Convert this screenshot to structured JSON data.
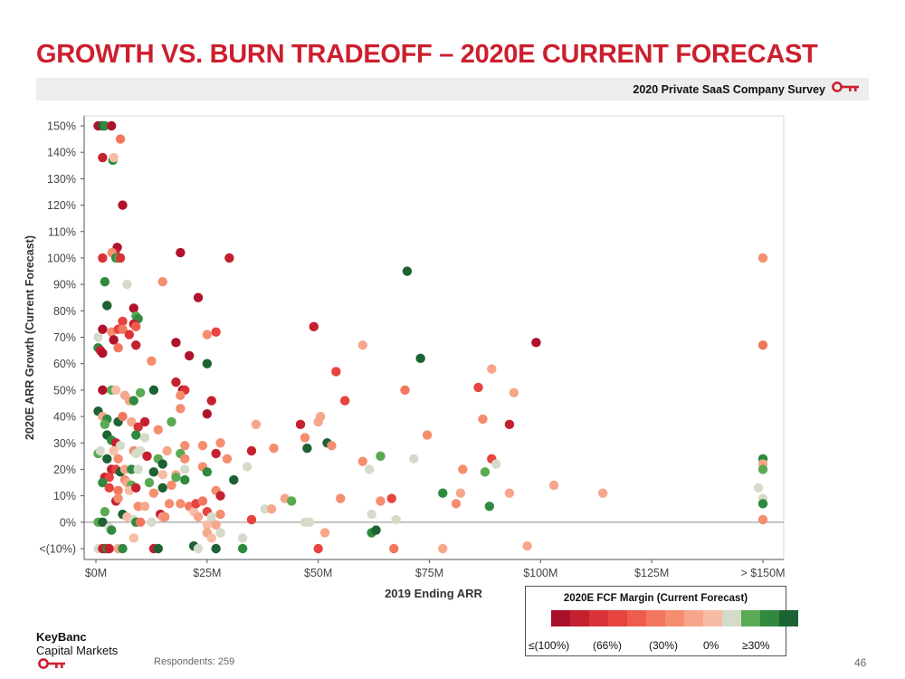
{
  "slide": {
    "title": "GROWTH VS. BURN TRADEOFF – 2020E CURRENT FORECAST",
    "survey_label": "2020 Private SaaS Company Survey",
    "respondents": "Respondents: 259",
    "page_number": "46",
    "logo_line1": "KeyBanc",
    "logo_line2": "Capital Markets",
    "brand_color": "#cc1f2e"
  },
  "legend": {
    "title": "2020E FCF Margin (Current Forecast)",
    "colors": [
      "#a8102c",
      "#c5202f",
      "#da3239",
      "#e7433f",
      "#ee5c4f",
      "#f3765e",
      "#f58d6f",
      "#f6a68a",
      "#f7bca5",
      "#d5dbc9",
      "#5aaa54",
      "#2f8a40",
      "#1c6233"
    ],
    "ticks": [
      "≤(100%)",
      "(66%)",
      "(30%)",
      "0%",
      "≥30%"
    ]
  },
  "chart_data": {
    "type": "scatter",
    "title": "",
    "xlabel": "2019 Ending ARR",
    "ylabel": "2020E ARR Growth (Current Forecast)",
    "xlim": [
      0,
      150
    ],
    "ylim": [
      -10,
      150
    ],
    "x_ticks": [
      0,
      25,
      50,
      75,
      100,
      125,
      150
    ],
    "x_tick_labels": [
      "$0M",
      "$25M",
      "$50M",
      "$75M",
      "$100M",
      "$125M",
      "> $150M"
    ],
    "y_ticks": [
      -10,
      0,
      10,
      20,
      30,
      40,
      50,
      60,
      70,
      80,
      90,
      100,
      110,
      120,
      130,
      140,
      150
    ],
    "y_tick_labels": [
      "<(10%)",
      "0%",
      "10%",
      "20%",
      "30%",
      "40%",
      "50%",
      "60%",
      "70%",
      "80%",
      "90%",
      "100%",
      "110%",
      "120%",
      "130%",
      "140%",
      "150%"
    ],
    "grid": false,
    "color_scale": "2020E FCF Margin (Current Forecast)",
    "points": [
      {
        "x": 0.5,
        "y": 150,
        "c": "#b0132b"
      },
      {
        "x": 1.5,
        "y": 150,
        "c": "#1c6233"
      },
      {
        "x": 2.0,
        "y": 150,
        "c": "#2f8a40"
      },
      {
        "x": 3.5,
        "y": 150,
        "c": "#b0132b"
      },
      {
        "x": 5.5,
        "y": 145,
        "c": "#f3765e"
      },
      {
        "x": 1.5,
        "y": 138,
        "c": "#c5202f"
      },
      {
        "x": 3.8,
        "y": 137,
        "c": "#2f8a40"
      },
      {
        "x": 4.0,
        "y": 138,
        "c": "#f7bca5"
      },
      {
        "x": 6.0,
        "y": 120,
        "c": "#b0132b"
      },
      {
        "x": 4.8,
        "y": 104,
        "c": "#b0132b"
      },
      {
        "x": 4.3,
        "y": 102,
        "c": "#c5202f"
      },
      {
        "x": 3.6,
        "y": 102,
        "c": "#f58d6f"
      },
      {
        "x": 1.5,
        "y": 100,
        "c": "#da3239"
      },
      {
        "x": 4.5,
        "y": 100,
        "c": "#2f8a40"
      },
      {
        "x": 5.2,
        "y": 100,
        "c": "#5aaa54"
      },
      {
        "x": 5.5,
        "y": 100,
        "c": "#da3239"
      },
      {
        "x": 19,
        "y": 102,
        "c": "#b0132b"
      },
      {
        "x": 30,
        "y": 100,
        "c": "#c5202f"
      },
      {
        "x": 2.0,
        "y": 91,
        "c": "#2f8a40"
      },
      {
        "x": 7.0,
        "y": 90,
        "c": "#d5dbc9"
      },
      {
        "x": 15,
        "y": 91,
        "c": "#f58d6f"
      },
      {
        "x": 23,
        "y": 85,
        "c": "#b0132b"
      },
      {
        "x": 2.5,
        "y": 82,
        "c": "#1c6233"
      },
      {
        "x": 8.5,
        "y": 81,
        "c": "#b0132b"
      },
      {
        "x": 9.0,
        "y": 78,
        "c": "#5aaa54"
      },
      {
        "x": 9.5,
        "y": 77,
        "c": "#2f8a40"
      },
      {
        "x": 6.0,
        "y": 76,
        "c": "#e7433f"
      },
      {
        "x": 8.5,
        "y": 75,
        "c": "#c5202f"
      },
      {
        "x": 9.0,
        "y": 74,
        "c": "#ee5c4f"
      },
      {
        "x": 1.5,
        "y": 73,
        "c": "#b0132b"
      },
      {
        "x": 3.5,
        "y": 72,
        "c": "#f58d6f"
      },
      {
        "x": 5.0,
        "y": 73,
        "c": "#e7433f"
      },
      {
        "x": 6.0,
        "y": 73,
        "c": "#f3765e"
      },
      {
        "x": 7.5,
        "y": 71,
        "c": "#da3239"
      },
      {
        "x": 0.5,
        "y": 70,
        "c": "#d5dbc9"
      },
      {
        "x": 4.0,
        "y": 69,
        "c": "#b0132b"
      },
      {
        "x": 0.5,
        "y": 66,
        "c": "#2f8a40"
      },
      {
        "x": 1.0,
        "y": 65,
        "c": "#c5202f"
      },
      {
        "x": 1.5,
        "y": 64,
        "c": "#b0132b"
      },
      {
        "x": 5.0,
        "y": 66,
        "c": "#f3765e"
      },
      {
        "x": 9.0,
        "y": 67,
        "c": "#c5202f"
      },
      {
        "x": 12.5,
        "y": 61,
        "c": "#f58d6f"
      },
      {
        "x": 18,
        "y": 68,
        "c": "#b0132b"
      },
      {
        "x": 25,
        "y": 71,
        "c": "#f58d6f"
      },
      {
        "x": 27,
        "y": 72,
        "c": "#e7433f"
      },
      {
        "x": 21,
        "y": 63,
        "c": "#b0132b"
      },
      {
        "x": 25,
        "y": 60,
        "c": "#1c6233"
      },
      {
        "x": 49,
        "y": 74,
        "c": "#c5202f"
      },
      {
        "x": 60,
        "y": 67,
        "c": "#f6a68a"
      },
      {
        "x": 70,
        "y": 95,
        "c": "#1c6233"
      },
      {
        "x": 73,
        "y": 62,
        "c": "#1c6233"
      },
      {
        "x": 99,
        "y": 68,
        "c": "#b0132b"
      },
      {
        "x": 150,
        "y": 100,
        "c": "#f58d6f"
      },
      {
        "x": 150,
        "y": 67,
        "c": "#f3765e"
      },
      {
        "x": 18,
        "y": 53,
        "c": "#c5202f"
      },
      {
        "x": 19.5,
        "y": 50,
        "c": "#b0132b"
      },
      {
        "x": 20,
        "y": 50,
        "c": "#da3239"
      },
      {
        "x": 19,
        "y": 48,
        "c": "#f58d6f"
      },
      {
        "x": 1.5,
        "y": 50,
        "c": "#b0132b"
      },
      {
        "x": 3.5,
        "y": 50,
        "c": "#5aaa54"
      },
      {
        "x": 4.5,
        "y": 50,
        "c": "#f7bca5"
      },
      {
        "x": 6.5,
        "y": 48,
        "c": "#f6a68a"
      },
      {
        "x": 7.5,
        "y": 46,
        "c": "#f6a68a"
      },
      {
        "x": 8.5,
        "y": 46,
        "c": "#2f8a40"
      },
      {
        "x": 10,
        "y": 49,
        "c": "#5aaa54"
      },
      {
        "x": 13,
        "y": 50,
        "c": "#1c6233"
      },
      {
        "x": 26,
        "y": 46,
        "c": "#c5202f"
      },
      {
        "x": 25,
        "y": 41,
        "c": "#b0132b"
      },
      {
        "x": 0.5,
        "y": 42,
        "c": "#1c6233"
      },
      {
        "x": 1.5,
        "y": 40,
        "c": "#f6a68a"
      },
      {
        "x": 2.5,
        "y": 39,
        "c": "#2f8a40"
      },
      {
        "x": 2.0,
        "y": 37,
        "c": "#5aaa54"
      },
      {
        "x": 5.0,
        "y": 38,
        "c": "#1c6233"
      },
      {
        "x": 6.0,
        "y": 40,
        "c": "#f3765e"
      },
      {
        "x": 8.0,
        "y": 38,
        "c": "#f6a68a"
      },
      {
        "x": 9.5,
        "y": 36,
        "c": "#da3239"
      },
      {
        "x": 11,
        "y": 38,
        "c": "#c5202f"
      },
      {
        "x": 14,
        "y": 35,
        "c": "#f58d6f"
      },
      {
        "x": 17,
        "y": 38,
        "c": "#5aaa54"
      },
      {
        "x": 19,
        "y": 43,
        "c": "#f58d6f"
      },
      {
        "x": 9.0,
        "y": 33,
        "c": "#2f8a40"
      },
      {
        "x": 11,
        "y": 32,
        "c": "#d5dbc9"
      },
      {
        "x": 2.5,
        "y": 33,
        "c": "#1c6233"
      },
      {
        "x": 3.5,
        "y": 31,
        "c": "#2f8a40"
      },
      {
        "x": 4.5,
        "y": 30,
        "c": "#c5202f"
      },
      {
        "x": 5.5,
        "y": 29,
        "c": "#d5dbc9"
      },
      {
        "x": 4.0,
        "y": 27,
        "c": "#f7bca5"
      },
      {
        "x": 0.5,
        "y": 26,
        "c": "#5aaa54"
      },
      {
        "x": 1.0,
        "y": 27,
        "c": "#d5dbc9"
      },
      {
        "x": 8.5,
        "y": 27,
        "c": "#f58d6f"
      },
      {
        "x": 9.0,
        "y": 26,
        "c": "#d5dbc9"
      },
      {
        "x": 10,
        "y": 27,
        "c": "#d5dbc9"
      },
      {
        "x": 11.5,
        "y": 25,
        "c": "#c5202f"
      },
      {
        "x": 14,
        "y": 24,
        "c": "#5aaa54"
      },
      {
        "x": 15,
        "y": 22,
        "c": "#1c6233"
      },
      {
        "x": 16,
        "y": 27,
        "c": "#f6a68a"
      },
      {
        "x": 19,
        "y": 26,
        "c": "#5aaa54"
      },
      {
        "x": 20,
        "y": 29,
        "c": "#f58d6f"
      },
      {
        "x": 20,
        "y": 24,
        "c": "#f58d6f"
      },
      {
        "x": 24,
        "y": 29,
        "c": "#f58d6f"
      },
      {
        "x": 27,
        "y": 26,
        "c": "#c5202f"
      },
      {
        "x": 28,
        "y": 30,
        "c": "#f58d6f"
      },
      {
        "x": 29.5,
        "y": 24,
        "c": "#f58d6f"
      },
      {
        "x": 2.5,
        "y": 24,
        "c": "#1c6233"
      },
      {
        "x": 5.0,
        "y": 24,
        "c": "#f58d6f"
      },
      {
        "x": 3.5,
        "y": 20,
        "c": "#c5202f"
      },
      {
        "x": 4.5,
        "y": 20,
        "c": "#e7433f"
      },
      {
        "x": 5.5,
        "y": 19,
        "c": "#1c6233"
      },
      {
        "x": 6.5,
        "y": 20,
        "c": "#f6a68a"
      },
      {
        "x": 8.0,
        "y": 20,
        "c": "#2f8a40"
      },
      {
        "x": 9.5,
        "y": 20,
        "c": "#d5dbc9"
      },
      {
        "x": 13,
        "y": 19,
        "c": "#1c6233"
      },
      {
        "x": 15,
        "y": 18,
        "c": "#f7bca5"
      },
      {
        "x": 18,
        "y": 18,
        "c": "#f6a68a"
      },
      {
        "x": 20,
        "y": 20,
        "c": "#d5dbc9"
      },
      {
        "x": 24,
        "y": 21,
        "c": "#f58d6f"
      },
      {
        "x": 25,
        "y": 19,
        "c": "#2f8a40"
      },
      {
        "x": 2.0,
        "y": 17,
        "c": "#c5202f"
      },
      {
        "x": 3.0,
        "y": 17,
        "c": "#e7433f"
      },
      {
        "x": 1.5,
        "y": 15,
        "c": "#2f8a40"
      },
      {
        "x": 6.5,
        "y": 16,
        "c": "#f58d6f"
      },
      {
        "x": 7.0,
        "y": 15,
        "c": "#f6a68a"
      },
      {
        "x": 8.0,
        "y": 14,
        "c": "#5aaa54"
      },
      {
        "x": 12,
        "y": 15,
        "c": "#5aaa54"
      },
      {
        "x": 17,
        "y": 14,
        "c": "#f58d6f"
      },
      {
        "x": 18,
        "y": 17,
        "c": "#5aaa54"
      },
      {
        "x": 20,
        "y": 16,
        "c": "#2f8a40"
      },
      {
        "x": 3.0,
        "y": 13,
        "c": "#e7433f"
      },
      {
        "x": 5.0,
        "y": 12,
        "c": "#f3765e"
      },
      {
        "x": 7.5,
        "y": 12,
        "c": "#f7bca5"
      },
      {
        "x": 9.0,
        "y": 13,
        "c": "#c5202f"
      },
      {
        "x": 13,
        "y": 11,
        "c": "#f58d6f"
      },
      {
        "x": 15,
        "y": 13,
        "c": "#1c6233"
      },
      {
        "x": 27,
        "y": 12,
        "c": "#f58d6f"
      },
      {
        "x": 28,
        "y": 10,
        "c": "#c5202f"
      },
      {
        "x": 31,
        "y": 16,
        "c": "#1c6233"
      },
      {
        "x": 34,
        "y": 21,
        "c": "#d5dbc9"
      },
      {
        "x": 35,
        "y": 27,
        "c": "#c5202f"
      },
      {
        "x": 36,
        "y": 37,
        "c": "#f6a68a"
      },
      {
        "x": 40,
        "y": 28,
        "c": "#f58d6f"
      },
      {
        "x": 46,
        "y": 37,
        "c": "#c5202f"
      },
      {
        "x": 47,
        "y": 32,
        "c": "#f58d6f"
      },
      {
        "x": 47.5,
        "y": 28,
        "c": "#1c6233"
      },
      {
        "x": 50,
        "y": 38,
        "c": "#f6a68a"
      },
      {
        "x": 50.5,
        "y": 40,
        "c": "#f6a68a"
      },
      {
        "x": 52,
        "y": 30,
        "c": "#1c6233"
      },
      {
        "x": 53,
        "y": 29,
        "c": "#f58d6f"
      },
      {
        "x": 54,
        "y": 57,
        "c": "#e7433f"
      },
      {
        "x": 56,
        "y": 46,
        "c": "#e7433f"
      },
      {
        "x": 60,
        "y": 23,
        "c": "#f58d6f"
      },
      {
        "x": 61.5,
        "y": 20,
        "c": "#d5dbc9"
      },
      {
        "x": 64,
        "y": 25,
        "c": "#5aaa54"
      },
      {
        "x": 69.5,
        "y": 50,
        "c": "#f3765e"
      },
      {
        "x": 71.5,
        "y": 24,
        "c": "#d5dbc9"
      },
      {
        "x": 74.5,
        "y": 33,
        "c": "#f58d6f"
      },
      {
        "x": 82.5,
        "y": 20,
        "c": "#f58d6f"
      },
      {
        "x": 86,
        "y": 51,
        "c": "#e7433f"
      },
      {
        "x": 87,
        "y": 39,
        "c": "#f58d6f"
      },
      {
        "x": 87.5,
        "y": 19,
        "c": "#5aaa54"
      },
      {
        "x": 89,
        "y": 58,
        "c": "#f6a68a"
      },
      {
        "x": 89,
        "y": 24,
        "c": "#e7433f"
      },
      {
        "x": 90,
        "y": 22,
        "c": "#d5dbc9"
      },
      {
        "x": 93,
        "y": 37,
        "c": "#c5202f"
      },
      {
        "x": 94,
        "y": 49,
        "c": "#f6a68a"
      },
      {
        "x": 150,
        "y": 24,
        "c": "#2f8a40"
      },
      {
        "x": 150,
        "y": 22,
        "c": "#f6a68a"
      },
      {
        "x": 150,
        "y": 20,
        "c": "#5aaa54"
      },
      {
        "x": 38,
        "y": 5,
        "c": "#d5dbc9"
      },
      {
        "x": 39.5,
        "y": 5,
        "c": "#f6a68a"
      },
      {
        "x": 42.5,
        "y": 9,
        "c": "#f6a68a"
      },
      {
        "x": 44,
        "y": 8,
        "c": "#5aaa54"
      },
      {
        "x": 47,
        "y": 0,
        "c": "#d5dbc9"
      },
      {
        "x": 48,
        "y": 0,
        "c": "#d5dbc9"
      },
      {
        "x": 51.5,
        "y": -4,
        "c": "#f6a68a"
      },
      {
        "x": 55,
        "y": 9,
        "c": "#f58d6f"
      },
      {
        "x": 62,
        "y": 3,
        "c": "#d5dbc9"
      },
      {
        "x": 62,
        "y": -4,
        "c": "#2f8a40"
      },
      {
        "x": 63,
        "y": -3,
        "c": "#1c6233"
      },
      {
        "x": 64,
        "y": 8,
        "c": "#f58d6f"
      },
      {
        "x": 66.5,
        "y": 9,
        "c": "#e7433f"
      },
      {
        "x": 67.5,
        "y": 1,
        "c": "#d5dbc9"
      },
      {
        "x": 78,
        "y": 11,
        "c": "#2f8a40"
      },
      {
        "x": 81,
        "y": 7,
        "c": "#f58d6f"
      },
      {
        "x": 82,
        "y": 11,
        "c": "#f6a68a"
      },
      {
        "x": 88.5,
        "y": 6,
        "c": "#2f8a40"
      },
      {
        "x": 93,
        "y": 11,
        "c": "#f6a68a"
      },
      {
        "x": 103,
        "y": 14,
        "c": "#f6a68a"
      },
      {
        "x": 114,
        "y": 11,
        "c": "#f6a68a"
      },
      {
        "x": 149,
        "y": 13,
        "c": "#d5dbc9"
      },
      {
        "x": 150,
        "y": 9,
        "c": "#d5dbc9"
      },
      {
        "x": 150,
        "y": 7,
        "c": "#2f8a40"
      },
      {
        "x": 150,
        "y": 1,
        "c": "#f58d6f"
      },
      {
        "x": 0.5,
        "y": 0,
        "c": "#5aaa54"
      },
      {
        "x": 1.5,
        "y": 0,
        "c": "#1c6233"
      },
      {
        "x": 2.0,
        "y": 4,
        "c": "#5aaa54"
      },
      {
        "x": 3.0,
        "y": -2,
        "c": "#d5dbc9"
      },
      {
        "x": 3.5,
        "y": -3,
        "c": "#2f8a40"
      },
      {
        "x": 4.5,
        "y": 8,
        "c": "#c5202f"
      },
      {
        "x": 5.0,
        "y": 9,
        "c": "#f58d6f"
      },
      {
        "x": 6.0,
        "y": 3,
        "c": "#1c6233"
      },
      {
        "x": 7.0,
        "y": 2,
        "c": "#f7bca5"
      },
      {
        "x": 8.5,
        "y": 1,
        "c": "#d5dbc9"
      },
      {
        "x": 9.0,
        "y": 0,
        "c": "#2f8a40"
      },
      {
        "x": 10,
        "y": 0,
        "c": "#f3765e"
      },
      {
        "x": 9.5,
        "y": 6,
        "c": "#f58d6f"
      },
      {
        "x": 11,
        "y": 6,
        "c": "#f6a68a"
      },
      {
        "x": 12.5,
        "y": 0,
        "c": "#d5dbc9"
      },
      {
        "x": 14.5,
        "y": 3,
        "c": "#c5202f"
      },
      {
        "x": 15,
        "y": 2,
        "c": "#f6a68a"
      },
      {
        "x": 15.5,
        "y": 2,
        "c": "#f58d6f"
      },
      {
        "x": 16.5,
        "y": 7,
        "c": "#f58d6f"
      },
      {
        "x": 19,
        "y": 7,
        "c": "#f58d6f"
      },
      {
        "x": 21,
        "y": 6,
        "c": "#f3765e"
      },
      {
        "x": 22,
        "y": 4,
        "c": "#f7bca5"
      },
      {
        "x": 22.5,
        "y": 7,
        "c": "#e7433f"
      },
      {
        "x": 23,
        "y": 2,
        "c": "#f6a68a"
      },
      {
        "x": 24,
        "y": 8,
        "c": "#f3765e"
      },
      {
        "x": 25,
        "y": 4,
        "c": "#e7433f"
      },
      {
        "x": 25,
        "y": -1,
        "c": "#f7bca5"
      },
      {
        "x": 26,
        "y": 2,
        "c": "#d5dbc9"
      },
      {
        "x": 27,
        "y": -1,
        "c": "#f6a68a"
      },
      {
        "x": 28,
        "y": 3,
        "c": "#f58d6f"
      },
      {
        "x": 33,
        "y": -6,
        "c": "#d5dbc9"
      },
      {
        "x": 35,
        "y": 1,
        "c": "#e7433f"
      },
      {
        "x": 25,
        "y": -4,
        "c": "#f6a68a"
      },
      {
        "x": 26,
        "y": -6,
        "c": "#f7bca5"
      },
      {
        "x": 28,
        "y": -4,
        "c": "#d5dbc9"
      },
      {
        "x": 8.5,
        "y": -6,
        "c": "#f7bca5"
      },
      {
        "x": 0.5,
        "y": -10,
        "c": "#d5dbc9"
      },
      {
        "x": 1.5,
        "y": -10,
        "c": "#c5202f"
      },
      {
        "x": 2.0,
        "y": -10,
        "c": "#c5202f"
      },
      {
        "x": 2.5,
        "y": -10,
        "c": "#2f8a40"
      },
      {
        "x": 3.0,
        "y": -10,
        "c": "#c5202f"
      },
      {
        "x": 5.0,
        "y": -10,
        "c": "#f6a68a"
      },
      {
        "x": 6.0,
        "y": -10,
        "c": "#2f8a40"
      },
      {
        "x": 13,
        "y": -10,
        "c": "#c5202f"
      },
      {
        "x": 14,
        "y": -10,
        "c": "#1c6233"
      },
      {
        "x": 22,
        "y": -9,
        "c": "#1c6233"
      },
      {
        "x": 23,
        "y": -10,
        "c": "#d5dbc9"
      },
      {
        "x": 27,
        "y": -10,
        "c": "#1c6233"
      },
      {
        "x": 33,
        "y": -10,
        "c": "#2f8a40"
      },
      {
        "x": 50,
        "y": -10,
        "c": "#e7433f"
      },
      {
        "x": 67,
        "y": -10,
        "c": "#f3765e"
      },
      {
        "x": 78,
        "y": -10,
        "c": "#f6a68a"
      },
      {
        "x": 97,
        "y": -9,
        "c": "#f6a68a"
      }
    ]
  }
}
